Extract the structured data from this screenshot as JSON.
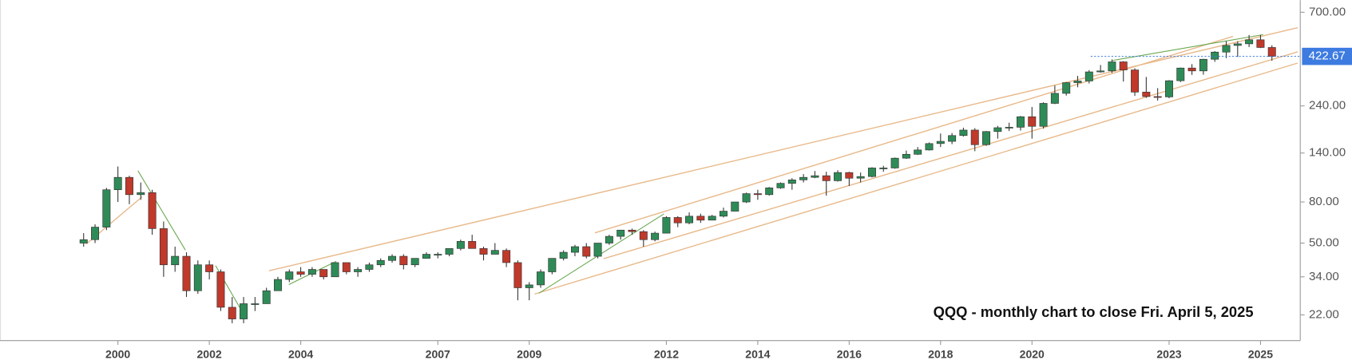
{
  "chart_data": {
    "type": "candlestick",
    "annotation": "QQQ - monthly chart to close Fri. April 5, 2025",
    "log_scale": true,
    "up_color": "#2e8b57",
    "down_color": "#c0392b",
    "last_price": 422.67,
    "xlim": [
      1997.42,
      2025.87
    ],
    "xticks": [
      2000,
      2002,
      2004,
      2007,
      2009,
      2012,
      2014,
      2016,
      2018,
      2020,
      2023,
      2025
    ],
    "ylim": [
      16.4,
      804
    ],
    "yticks": [
      {
        "value": 22,
        "label": "22.00"
      },
      {
        "value": 34,
        "label": "34.00"
      },
      {
        "value": 50,
        "label": "50.00"
      },
      {
        "value": 80,
        "label": "80.00"
      },
      {
        "value": 140,
        "label": "140.00"
      },
      {
        "value": 240,
        "label": "240.00"
      },
      {
        "value": 700,
        "label": "700.00"
      }
    ],
    "x": [
      1999.25,
      1999.5,
      1999.75,
      2000,
      2000.25,
      2000.5,
      2000.75,
      2001,
      2001.25,
      2001.5,
      2001.75,
      2002,
      2002.25,
      2002.5,
      2002.75,
      2003,
      2003.25,
      2003.5,
      2003.75,
      2004,
      2004.25,
      2004.5,
      2004.75,
      2005,
      2005.25,
      2005.5,
      2005.75,
      2006,
      2006.25,
      2006.5,
      2006.75,
      2007,
      2007.25,
      2007.5,
      2007.75,
      2008,
      2008.25,
      2008.5,
      2008.75,
      2009,
      2009.25,
      2009.5,
      2009.75,
      2010,
      2010.25,
      2010.5,
      2010.75,
      2011,
      2011.25,
      2011.5,
      2011.75,
      2012,
      2012.25,
      2012.5,
      2012.75,
      2013,
      2013.25,
      2013.5,
      2013.75,
      2014,
      2014.25,
      2014.5,
      2014.75,
      2015,
      2015.25,
      2015.5,
      2015.75,
      2016,
      2016.25,
      2016.5,
      2016.75,
      2017,
      2017.25,
      2017.5,
      2017.75,
      2018,
      2018.25,
      2018.5,
      2018.75,
      2019,
      2019.25,
      2019.5,
      2019.75,
      2020,
      2020.25,
      2020.5,
      2020.75,
      2021,
      2021.25,
      2021.5,
      2021.75,
      2022,
      2022.25,
      2022.5,
      2022.75,
      2023,
      2023.25,
      2023.5,
      2023.75,
      2024,
      2024.25,
      2024.5,
      2024.75,
      2025,
      2025.25
    ],
    "open": [
      50,
      52,
      60,
      92,
      106,
      87,
      89,
      59,
      39,
      43,
      29,
      39,
      36,
      24,
      21,
      25,
      25,
      29,
      33,
      36,
      35,
      37,
      34,
      40,
      36,
      37,
      39,
      41,
      43,
      39,
      42,
      44,
      44,
      47,
      51,
      47,
      44,
      46,
      40,
      30,
      31,
      36,
      42,
      45,
      48,
      43,
      50,
      54,
      58,
      57,
      52,
      56,
      67,
      63,
      68,
      65,
      68,
      72,
      80,
      88,
      87,
      94,
      99,
      103,
      106,
      108,
      102,
      112,
      105,
      107,
      118,
      118,
      132,
      138,
      145,
      156,
      160,
      171,
      182,
      154,
      179,
      187,
      188,
      212,
      190,
      247,
      277,
      313,
      319,
      354,
      358,
      397,
      362,
      281,
      267,
      266,
      320,
      370,
      358,
      409,
      444,
      479,
      488,
      511,
      468
    ],
    "high": [
      56,
      62,
      94,
      120,
      108,
      100,
      92,
      64,
      48,
      45,
      41,
      41,
      37,
      27,
      27,
      27,
      30,
      34,
      37,
      38,
      38,
      37,
      40,
      40,
      38,
      40,
      42,
      44,
      44,
      42,
      45,
      45,
      47,
      52,
      55,
      48,
      50,
      47,
      41,
      32,
      37,
      42,
      46,
      49,
      50,
      50,
      55,
      58,
      59,
      58,
      57,
      68,
      68,
      71,
      70,
      69,
      75,
      80,
      89,
      92,
      95,
      100,
      105,
      110,
      114,
      113,
      115,
      113,
      112,
      119,
      121,
      133,
      144,
      150,
      158,
      175,
      176,
      187,
      186,
      180,
      191,
      198,
      214,
      237,
      250,
      303,
      315,
      338,
      361,
      383,
      408,
      400,
      369,
      334,
      294,
      322,
      372,
      387,
      411,
      449,
      503,
      503,
      540,
      540,
      480
    ],
    "low": [
      48,
      50,
      58,
      80,
      78,
      82,
      55,
      34,
      36,
      27,
      28,
      33,
      23,
      20,
      20,
      23,
      25,
      29,
      32,
      34,
      34,
      33,
      34,
      35,
      34,
      36,
      38,
      40,
      37,
      38,
      42,
      42,
      43,
      46,
      47,
      41,
      44,
      38,
      26,
      26,
      30,
      35,
      41,
      43,
      42,
      42,
      49,
      52,
      55,
      48,
      51,
      56,
      60,
      62,
      63,
      65,
      67,
      72,
      79,
      82,
      86,
      93,
      92,
      100,
      105,
      86,
      101,
      96,
      100,
      106,
      113,
      117,
      131,
      137,
      144,
      150,
      155,
      169,
      143,
      152,
      165,
      180,
      181,
      165,
      185,
      245,
      270,
      297,
      310,
      351,
      350,
      317,
      269,
      263,
      255,
      262,
      315,
      342,
      343,
      397,
      414,
      420,
      470,
      465,
      402
    ],
    "close": [
      52,
      60,
      92,
      106,
      87,
      89,
      59,
      39,
      43,
      29,
      39,
      36,
      24,
      21,
      25,
      25,
      29,
      33,
      36,
      35,
      37,
      34,
      40,
      36,
      37,
      39,
      41,
      43,
      39,
      42,
      44,
      44,
      47,
      51,
      47,
      44,
      46,
      40,
      30,
      31,
      36,
      42,
      45,
      48,
      43,
      50,
      54,
      58,
      57,
      52,
      56,
      67,
      63,
      68,
      65,
      68,
      72,
      80,
      88,
      87,
      94,
      99,
      103,
      106,
      108,
      102,
      112,
      105,
      107,
      118,
      118,
      132,
      138,
      145,
      156,
      160,
      171,
      182,
      154,
      179,
      187,
      188,
      212,
      190,
      247,
      277,
      313,
      319,
      354,
      358,
      397,
      362,
      281,
      267,
      266,
      320,
      370,
      358,
      409,
      444,
      479,
      488,
      511,
      468,
      422.67
    ]
  }
}
